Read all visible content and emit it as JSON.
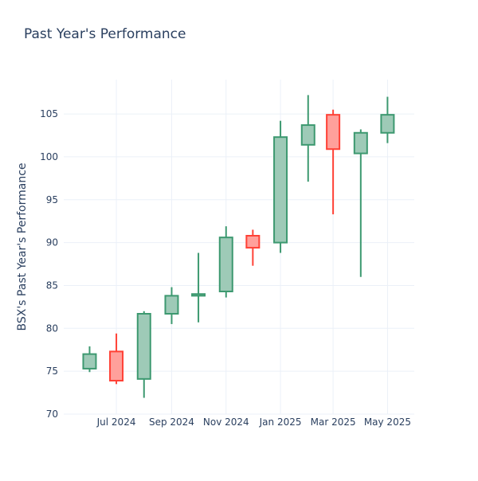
{
  "chart_data": {
    "type": "candlestick",
    "title": "Past Year's Performance",
    "xlabel": "",
    "ylabel": "BSX's Past Year's Performance",
    "ylim": [
      70,
      109
    ],
    "yticks": [
      70,
      75,
      80,
      85,
      90,
      95,
      100,
      105
    ],
    "grid": true,
    "legend": "none",
    "x_ticks": [
      {
        "label": "Jul 2024",
        "date": "2024-07-01"
      },
      {
        "label": "Sep 2024",
        "date": "2024-09-01"
      },
      {
        "label": "Nov 2024",
        "date": "2024-11-01"
      },
      {
        "label": "Jan 2025",
        "date": "2025-01-01"
      },
      {
        "label": "Mar 2025",
        "date": "2025-03-01"
      },
      {
        "label": "May 2025",
        "date": "2025-05-01"
      }
    ],
    "x_range": [
      "2024-05-03",
      "2025-05-31"
    ],
    "candles": [
      {
        "date": "2024-06-01",
        "open": 75.3,
        "high": 77.9,
        "low": 74.9,
        "close": 77.0
      },
      {
        "date": "2024-07-01",
        "open": 77.3,
        "high": 79.4,
        "low": 73.5,
        "close": 73.9
      },
      {
        "date": "2024-08-01",
        "open": 74.1,
        "high": 82.0,
        "low": 71.9,
        "close": 81.7
      },
      {
        "date": "2024-09-01",
        "open": 81.7,
        "high": 84.8,
        "low": 80.5,
        "close": 83.8
      },
      {
        "date": "2024-10-01",
        "open": 83.8,
        "high": 88.8,
        "low": 80.7,
        "close": 84.0
      },
      {
        "date": "2024-11-01",
        "open": 84.3,
        "high": 91.9,
        "low": 83.6,
        "close": 90.6
      },
      {
        "date": "2024-12-01",
        "open": 90.8,
        "high": 91.5,
        "low": 87.3,
        "close": 89.4
      },
      {
        "date": "2025-01-01",
        "open": 90.0,
        "high": 104.2,
        "low": 88.8,
        "close": 102.3
      },
      {
        "date": "2025-02-01",
        "open": 101.4,
        "high": 107.2,
        "low": 97.1,
        "close": 103.7
      },
      {
        "date": "2025-03-01",
        "open": 104.9,
        "high": 105.5,
        "low": 93.3,
        "close": 100.9
      },
      {
        "date": "2025-04-01",
        "open": 100.4,
        "high": 103.2,
        "low": 86.0,
        "close": 102.8
      },
      {
        "date": "2025-05-01",
        "open": 102.8,
        "high": 107.0,
        "low": 101.6,
        "close": 104.9
      }
    ],
    "colors": {
      "increasing_line": "#3d9970",
      "increasing_fill": "#9ecab7",
      "decreasing_line": "#ff4136",
      "decreasing_fill": "#ffa09b",
      "grid": "#ebf0f8",
      "text": "#2a3f5f"
    }
  }
}
